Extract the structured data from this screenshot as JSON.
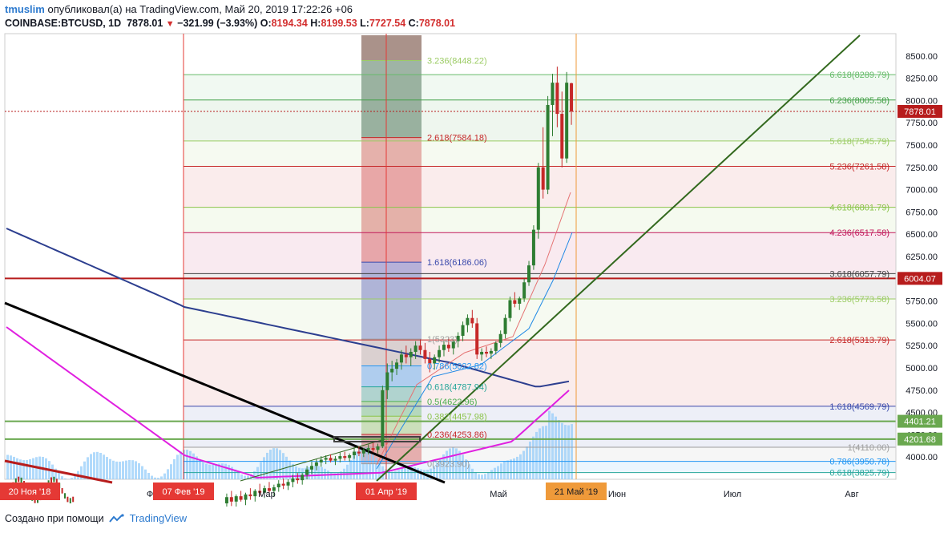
{
  "header": {
    "username": "tmuslim",
    "published_text": "опубликовал(а) на TradingView.com, Май 20, 2019 17:22:26 +06",
    "symbol": "COINBASE:BTCUSD, 1D",
    "last": "7878.01",
    "change": "−321.99 (−3.93%)",
    "o_label": "O:",
    "o": "8194.34",
    "h_label": "H:",
    "h": "8199.53",
    "l_label": "L:",
    "l": "7727.54",
    "c_label": "C:",
    "c": "7878.01"
  },
  "footer": {
    "created_text": "Создано при помощи",
    "brand": "TradingView"
  },
  "colors": {
    "up": "#2e7d32",
    "down": "#c62828",
    "ma_blue": "#2c3e8f",
    "ma_magenta": "#e020e0",
    "trend_green": "#33691e",
    "price_marker": "#b71c1c",
    "date_marker": "#e53935",
    "current_date_marker": "#ef9a3a",
    "volume": "#90caf9"
  },
  "chart_data": {
    "type": "candlestick",
    "ylim": [
      3750,
      8750
    ],
    "y_ticks": [
      "8500.00",
      "8250.00",
      "8000.00",
      "7750.00",
      "7500.00",
      "7250.00",
      "7000.00",
      "6750.00",
      "6500.00",
      "6250.00",
      "6000.00",
      "5750.00",
      "5500.00",
      "5250.00",
      "5000.00",
      "4750.00",
      "4500.00",
      "4250.00",
      "4000.00"
    ],
    "x_labels": [
      "Фев",
      "Мар",
      "Май",
      "Июн",
      "Июл",
      "Авг"
    ],
    "date_markers": [
      "20 Ноя '18",
      "07 Фев '19",
      "01 Апр '19",
      "21 Май '19"
    ],
    "price_markers": [
      {
        "label": "7878.01",
        "kind": "last"
      },
      {
        "label": "6004.07",
        "kind": "level"
      },
      {
        "label": "4401.21",
        "kind": "green"
      },
      {
        "label": "4201.68",
        "kind": "green"
      }
    ],
    "fib_right": [
      {
        "label": "6.618(8289.79)",
        "value": 8289.79,
        "color": "#66bb6a"
      },
      {
        "label": "6.236(8005.58)",
        "value": 8005.58,
        "color": "#43a047"
      },
      {
        "label": "5.618(7545.79)",
        "value": 7545.79,
        "color": "#9ccc65"
      },
      {
        "label": "5.236(7261.58)",
        "value": 7261.58,
        "color": "#c62828"
      },
      {
        "label": "4.618(6801.79)",
        "value": 6801.79,
        "color": "#8bc34a"
      },
      {
        "label": "4.236(6517.58)",
        "value": 6517.58,
        "color": "#c2185b"
      },
      {
        "label": "3.618(6057.79)",
        "value": 6057.79,
        "color": "#424242"
      },
      {
        "label": "3.236(5773.58)",
        "value": 5773.58,
        "color": "#9ccc65"
      },
      {
        "label": "2.618(5313.79)",
        "value": 5313.79,
        "color": "#c62828"
      },
      {
        "label": "1.618(4569.79)",
        "value": 4569.79,
        "color": "#3949ab"
      },
      {
        "label": "1(4110.00)",
        "value": 4110.0,
        "color": "#9e9e9e"
      },
      {
        "label": "0.786(3950.78)",
        "value": 3950.78,
        "color": "#2196f3"
      },
      {
        "label": "0.618(3825.79)",
        "value": 3825.79,
        "color": "#26a69a"
      }
    ],
    "fib_mid": [
      {
        "label": "3.236(8448.22)",
        "value": 8448.22,
        "color": "#9ccc65"
      },
      {
        "label": "2.618(7584.18)",
        "value": 7584.18,
        "color": "#c62828"
      },
      {
        "label": "1.618(6186.06)",
        "value": 6186.06,
        "color": "#3949ab"
      },
      {
        "label": "1(5323)",
        "value": 5323,
        "color": "#9e9e9e"
      },
      {
        "label": "0.786(5022.82)",
        "value": 5022.82,
        "color": "#2196f3"
      },
      {
        "label": "0.618(4787.94)",
        "value": 4787.94,
        "color": "#26a69a"
      },
      {
        "label": "0.5(4622.96)",
        "value": 4622.96,
        "color": "#4caf50"
      },
      {
        "label": "0.382(4457.98)",
        "value": 4457.98,
        "color": "#8bc34a"
      },
      {
        "label": "0.236(4253.86)",
        "value": 4253.86,
        "color": "#c62828"
      },
      {
        "label": "0(3923.90)",
        "value": 3923.9,
        "color": "#9e9e9e"
      }
    ],
    "candles": [
      [
        3480,
        3590,
        3400,
        3550
      ],
      [
        3550,
        3620,
        3450,
        3500
      ],
      [
        3500,
        3580,
        3420,
        3560
      ],
      [
        3560,
        3620,
        3500,
        3520
      ],
      [
        3520,
        3600,
        3460,
        3580
      ],
      [
        3580,
        3650,
        3520,
        3560
      ],
      [
        3560,
        3640,
        3500,
        3620
      ],
      [
        3620,
        3700,
        3560,
        3600
      ],
      [
        3600,
        3680,
        3540,
        3650
      ],
      [
        3650,
        3720,
        3590,
        3620
      ],
      [
        3620,
        3690,
        3560,
        3660
      ],
      [
        3660,
        3740,
        3610,
        3700
      ],
      [
        3700,
        3760,
        3640,
        3680
      ],
      [
        3680,
        3750,
        3630,
        3720
      ],
      [
        3720,
        3800,
        3660,
        3760
      ],
      [
        3760,
        3820,
        3700,
        3740
      ],
      [
        3740,
        3820,
        3690,
        3800
      ],
      [
        3800,
        3900,
        3750,
        3860
      ],
      [
        3860,
        3950,
        3810,
        3900
      ],
      [
        3900,
        3980,
        3850,
        3940
      ],
      [
        3940,
        4010,
        3890,
        3970
      ],
      [
        3970,
        4020,
        3920,
        3990
      ],
      [
        3990,
        4030,
        3940,
        3960
      ],
      [
        3960,
        4010,
        3910,
        3980
      ],
      [
        3980,
        4050,
        3940,
        4010
      ],
      [
        4010,
        4060,
        3960,
        3990
      ],
      [
        3990,
        4040,
        3950,
        4020
      ],
      [
        4020,
        4100,
        3980,
        4060
      ],
      [
        4060,
        4120,
        4010,
        4040
      ],
      [
        4040,
        4100,
        4000,
        4080
      ],
      [
        4080,
        4140,
        4030,
        4100
      ],
      [
        4100,
        4160,
        4050,
        4080
      ],
      [
        4080,
        4150,
        4040,
        4120
      ],
      [
        4120,
        4800,
        4100,
        4750
      ],
      [
        4750,
        5050,
        4650,
        4950
      ],
      [
        4950,
        5080,
        4850,
        4990
      ],
      [
        4990,
        5100,
        4920,
        5060
      ],
      [
        5060,
        5200,
        4980,
        5150
      ],
      [
        5150,
        5250,
        5050,
        5120
      ],
      [
        5120,
        5220,
        5020,
        5180
      ],
      [
        5180,
        5300,
        5100,
        5250
      ],
      [
        5250,
        5320,
        5150,
        5200
      ],
      [
        5200,
        5280,
        5050,
        5100
      ],
      [
        5100,
        5180,
        4950,
        5050
      ],
      [
        5050,
        5150,
        4980,
        5120
      ],
      [
        5120,
        5250,
        5060,
        5200
      ],
      [
        5200,
        5300,
        5130,
        5260
      ],
      [
        5260,
        5350,
        5180,
        5220
      ],
      [
        5220,
        5320,
        5150,
        5300
      ],
      [
        5300,
        5400,
        5230,
        5360
      ],
      [
        5360,
        5520,
        5300,
        5480
      ],
      [
        5480,
        5600,
        5400,
        5560
      ],
      [
        5560,
        5650,
        5450,
        5500
      ],
      [
        5500,
        5560,
        5100,
        5150
      ],
      [
        5150,
        5220,
        5080,
        5180
      ],
      [
        5180,
        5240,
        5120,
        5160
      ],
      [
        5160,
        5220,
        5100,
        5190
      ],
      [
        5190,
        5300,
        5150,
        5280
      ],
      [
        5280,
        5420,
        5230,
        5380
      ],
      [
        5380,
        5600,
        5330,
        5560
      ],
      [
        5560,
        5800,
        5520,
        5760
      ],
      [
        5760,
        5850,
        5680,
        5720
      ],
      [
        5720,
        5800,
        5650,
        5780
      ],
      [
        5780,
        6000,
        5740,
        5960
      ],
      [
        5960,
        6200,
        5920,
        6150
      ],
      [
        6150,
        6600,
        6100,
        6550
      ],
      [
        6550,
        7300,
        6450,
        7250
      ],
      [
        7250,
        7700,
        6900,
        7000
      ],
      [
        7000,
        8050,
        6950,
        7950
      ],
      [
        7950,
        8300,
        7600,
        8200
      ],
      [
        8200,
        8380,
        7700,
        7850
      ],
      [
        7850,
        8100,
        7250,
        7350
      ],
      [
        7350,
        8320,
        7300,
        8200
      ],
      [
        8194,
        8199,
        7727,
        7878
      ]
    ]
  }
}
